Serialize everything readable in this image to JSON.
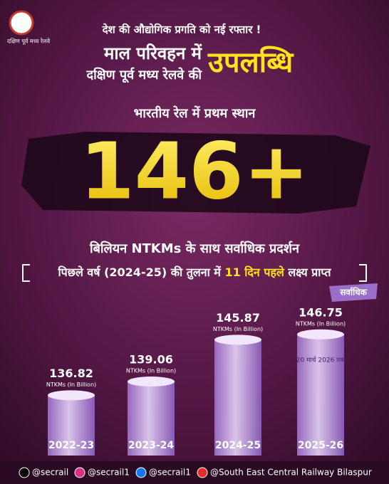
{
  "logo_text": "दक्षिण पूर्व मध्य रेलवे",
  "header": {
    "tagline": "देश की औद्योगिक प्रगति को नई रफ्तार !",
    "line1": "माल परिवहन में",
    "line2": "दक्षिण पूर्व मध्य रेलवे की",
    "highlight": "उपलब्धि",
    "rank": "भारतीय रेल में प्रथम स्थान",
    "big_figure": "146+",
    "big_caption": "बिलियन NTKMs के साथ सर्वाधिक प्रदर्शन",
    "comparison": {
      "before": "पिछले वर्ष (2024-25) की तुलना में ",
      "highlight": "11 दिन पहले",
      "after": " लक्ष्य प्राप्त"
    }
  },
  "chart_data": {
    "type": "bar",
    "categories": [
      "2022-23",
      "2023-24",
      "2024-25",
      "2025-26"
    ],
    "values": [
      136.82,
      139.06,
      145.87,
      146.75
    ],
    "unit_label": "NTKMs (In Billion)",
    "color": "#c9a8e8",
    "ylim": [
      127,
      148
    ],
    "annotation": "20 मार्च 2026 तक",
    "badge": "सर्वाधिक"
  },
  "footer": {
    "links": [
      "@secrail",
      "@secrail1",
      "@secrail1",
      "@South East Central Railway Bilaspur"
    ]
  }
}
